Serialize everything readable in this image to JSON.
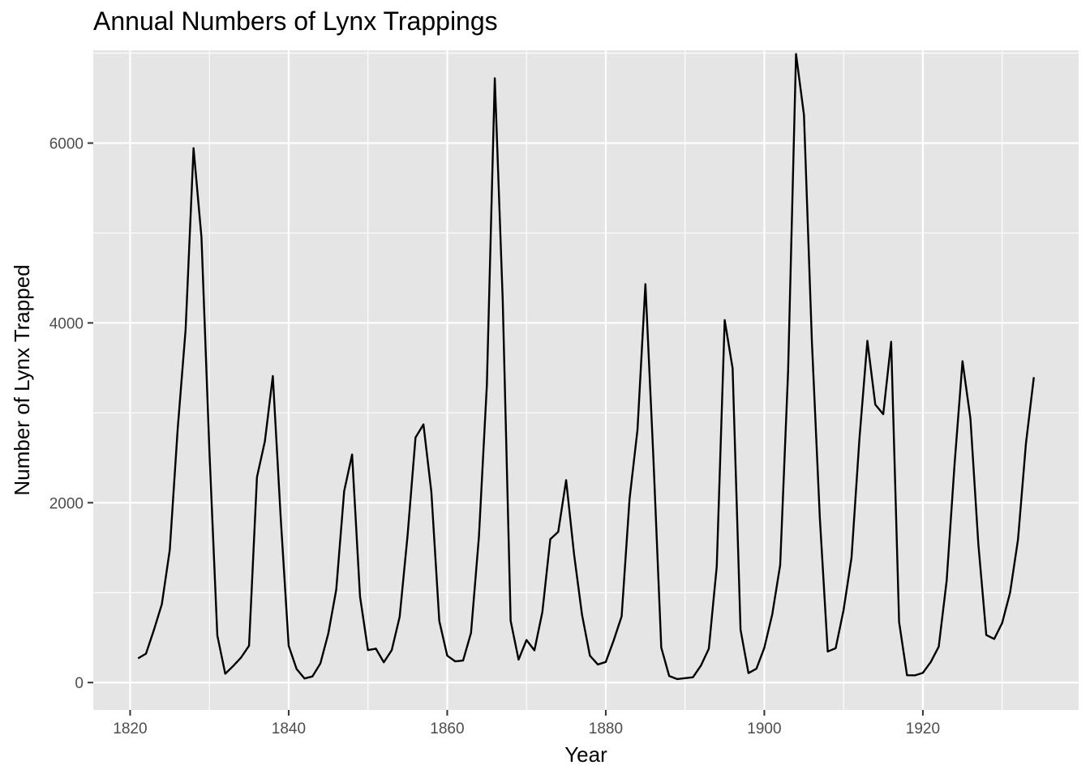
{
  "chart_data": {
    "type": "line",
    "title": "Annual Numbers of Lynx Trappings",
    "xlabel": "Year",
    "ylabel": "Number of Lynx Trapped",
    "xlim": [
      1815.35,
      1939.65
    ],
    "ylim": [
      -304.5,
      7032.5
    ],
    "x_ticks": [
      1820,
      1840,
      1860,
      1880,
      1900,
      1920
    ],
    "y_ticks": [
      0,
      2000,
      4000,
      6000
    ],
    "grid": true,
    "panel_background": "#e5e5e5",
    "grid_color": "#ffffff",
    "line_color": "#000000",
    "legend": "none",
    "x": [
      1821,
      1822,
      1823,
      1824,
      1825,
      1826,
      1827,
      1828,
      1829,
      1830,
      1831,
      1832,
      1833,
      1834,
      1835,
      1836,
      1837,
      1838,
      1839,
      1840,
      1841,
      1842,
      1843,
      1844,
      1845,
      1846,
      1847,
      1848,
      1849,
      1850,
      1851,
      1852,
      1853,
      1854,
      1855,
      1856,
      1857,
      1858,
      1859,
      1860,
      1861,
      1862,
      1863,
      1864,
      1865,
      1866,
      1867,
      1868,
      1869,
      1870,
      1871,
      1872,
      1873,
      1874,
      1875,
      1876,
      1877,
      1878,
      1879,
      1880,
      1881,
      1882,
      1883,
      1884,
      1885,
      1886,
      1887,
      1888,
      1889,
      1890,
      1891,
      1892,
      1893,
      1894,
      1895,
      1896,
      1897,
      1898,
      1899,
      1900,
      1901,
      1902,
      1903,
      1904,
      1905,
      1906,
      1907,
      1908,
      1909,
      1910,
      1911,
      1912,
      1913,
      1914,
      1915,
      1916,
      1917,
      1918,
      1919,
      1920,
      1921,
      1922,
      1923,
      1924,
      1925,
      1926,
      1927,
      1928,
      1929,
      1930,
      1931,
      1932,
      1933,
      1934
    ],
    "y": [
      269,
      321,
      585,
      871,
      1475,
      2821,
      3928,
      5943,
      4950,
      2577,
      523,
      98,
      184,
      279,
      409,
      2285,
      2685,
      3409,
      1824,
      409,
      151,
      45,
      68,
      213,
      546,
      1033,
      2129,
      2536,
      957,
      361,
      377,
      225,
      360,
      731,
      1638,
      2725,
      2871,
      2119,
      684,
      299,
      236,
      245,
      552,
      1623,
      3311,
      6721,
      4254,
      687,
      255,
      473,
      358,
      784,
      1594,
      1676,
      2251,
      1426,
      756,
      299,
      201,
      229,
      469,
      736,
      2042,
      2811,
      4431,
      2511,
      389,
      73,
      39,
      49,
      59,
      188,
      377,
      1292,
      4031,
      3495,
      587,
      105,
      153,
      387,
      758,
      1307,
      3465,
      6991,
      6313,
      3794,
      1836,
      345,
      382,
      808,
      1388,
      2713,
      3800,
      3091,
      2985,
      3790,
      674,
      81,
      80,
      108,
      229,
      399,
      1132,
      2432,
      3574,
      2935,
      1537,
      529,
      485,
      662,
      1000,
      1590,
      2657,
      3396
    ]
  }
}
